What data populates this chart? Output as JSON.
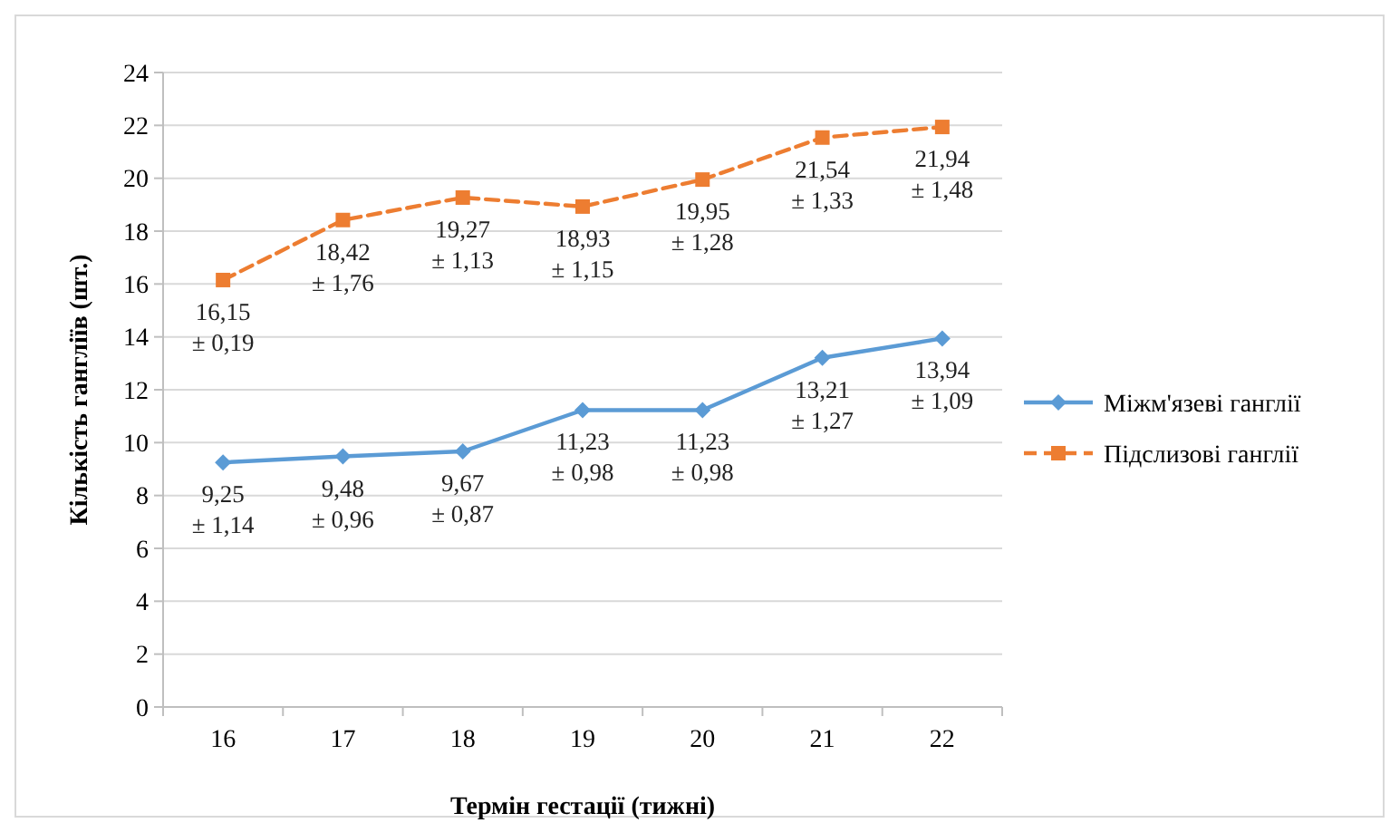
{
  "chart_data": {
    "type": "line",
    "xlabel": "Термін гестації (тижні)",
    "ylabel": "Кількість гангліїв (шт.)",
    "categories": [
      "16",
      "17",
      "18",
      "19",
      "20",
      "21",
      "22"
    ],
    "series": [
      {
        "name": "Міжм'язеві ганглії",
        "color": "#5b9bd5",
        "marker": "diamond",
        "line_style": "solid",
        "values": [
          9.25,
          9.48,
          9.67,
          11.23,
          11.23,
          13.21,
          13.94
        ],
        "value_labels": [
          "9,25\n± 1,14",
          "9,48\n± 0,96",
          "9,67\n± 0,87",
          "11,23\n± 0,98",
          "11,23\n± 0,98",
          "13,21\n± 1,27",
          "13,94\n± 1,09"
        ]
      },
      {
        "name": "Підслизові ганглії",
        "color": "#ed7d31",
        "marker": "square",
        "line_style": "dashed",
        "values": [
          16.15,
          18.42,
          19.27,
          18.93,
          19.95,
          21.54,
          21.94
        ],
        "value_labels": [
          "16,15\n± 0,19",
          "18,42\n± 1,76",
          "19,27\n± 1,13",
          "18,93\n± 1,15",
          "19,95\n± 1,28",
          "21,54\n± 1,33",
          "21,94\n± 1,48"
        ]
      }
    ],
    "ylim": [
      0,
      24
    ],
    "yticks": [
      0,
      2,
      4,
      6,
      8,
      10,
      12,
      14,
      16,
      18,
      20,
      22,
      24
    ],
    "grid": "y",
    "legend": "right"
  }
}
